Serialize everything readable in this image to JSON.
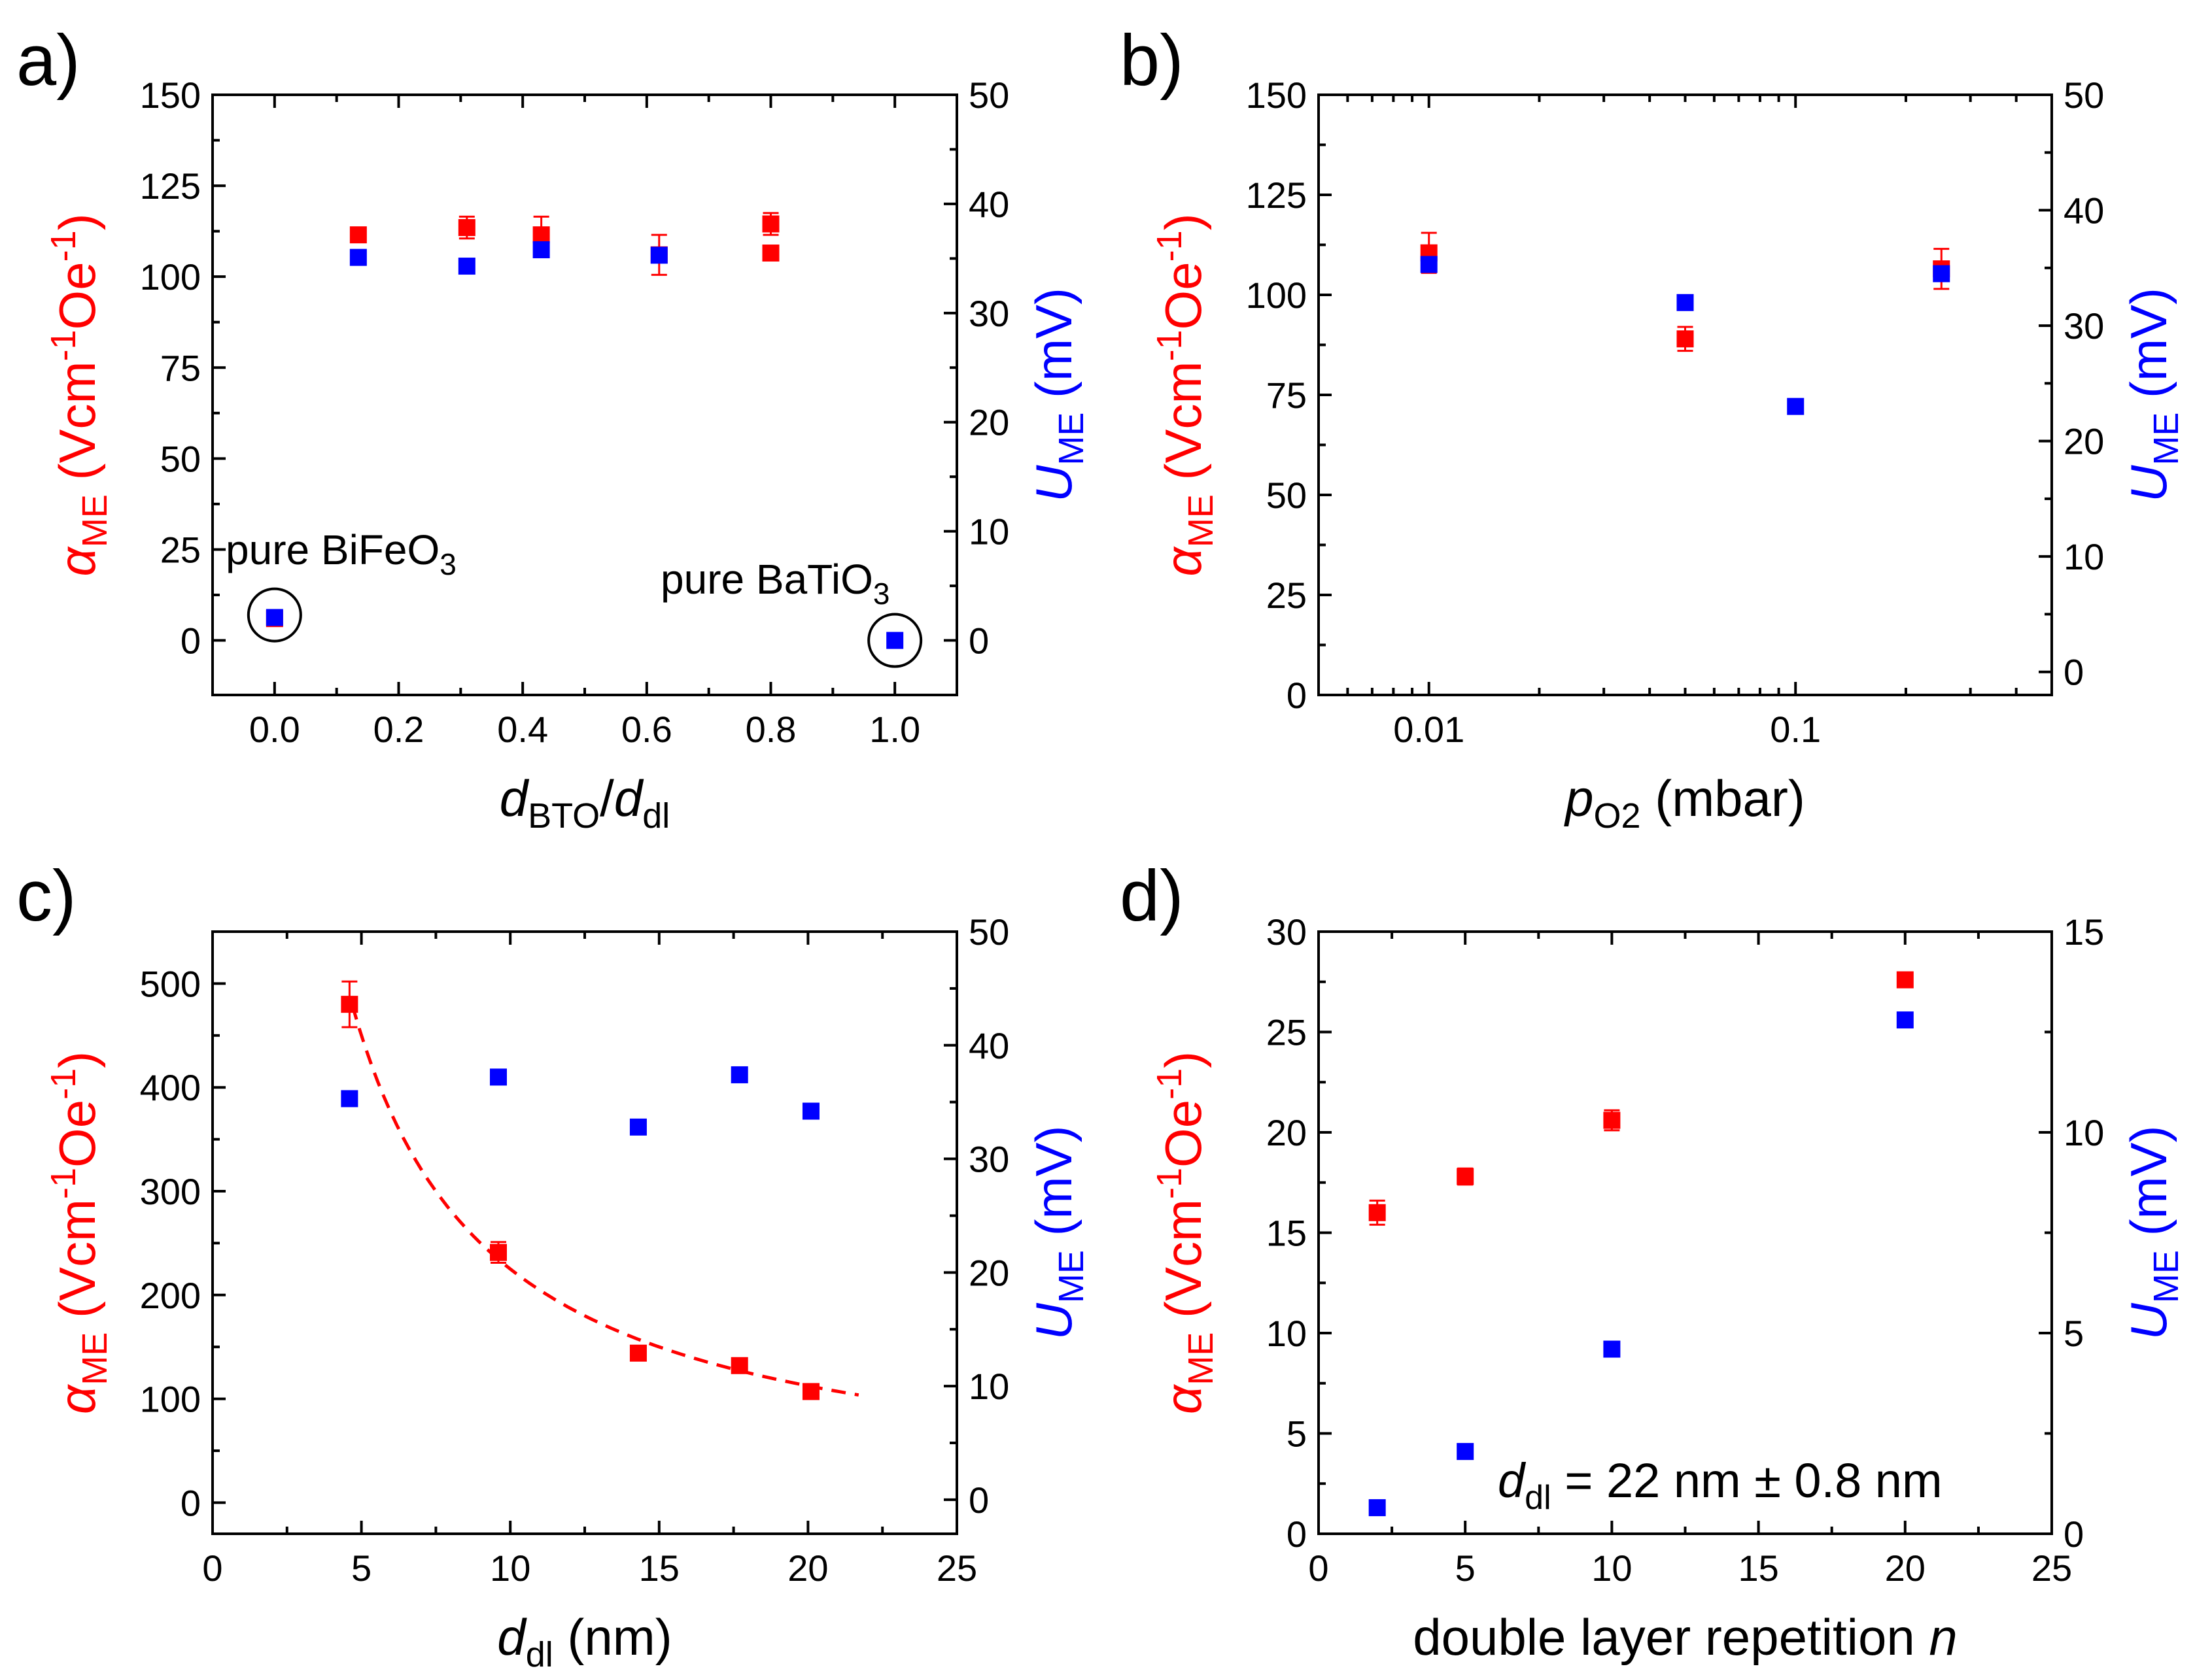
{
  "colors": {
    "red": "#ff0000",
    "blue": "#0000ff",
    "axis": "#000000"
  },
  "chart_data": [
    {
      "id": "a",
      "type": "scatter",
      "panel_label": "a)",
      "xscale": "linear",
      "xlim": [
        -0.1,
        1.1
      ],
      "xticks": [
        0.0,
        0.2,
        0.4,
        0.6,
        0.8,
        1.0
      ],
      "xtick_labels": [
        "0.0",
        "0.2",
        "0.4",
        "0.6",
        "0.8",
        "1.0"
      ],
      "ylim_left": [
        -15,
        150
      ],
      "yticks_left": [
        0,
        25,
        50,
        75,
        100,
        125,
        150
      ],
      "ylim_right": [
        -5,
        50
      ],
      "yticks_right": [
        0,
        10,
        20,
        30,
        40,
        50
      ],
      "xlabel": {
        "main": "d",
        "sub1": "BTO",
        "mid": "/d",
        "sub2": "dl"
      },
      "ylabel_left": {
        "sym": "α",
        "sub": "ME",
        "text": " (Vcm",
        "sup1": "-1",
        "mid": "Oe",
        "sup2": "-1",
        "end": ")"
      },
      "ylabel_right": {
        "sym": "U",
        "sub": "ME",
        "text": " (mV)"
      },
      "series": [
        {
          "name": "alpha_ME",
          "axis": "left",
          "color": "#ff0000",
          "x": [
            0.0,
            0.135,
            0.31,
            0.43,
            0.62,
            0.8
          ],
          "y": [
            6,
            111.5,
            113.5,
            111.5,
            106,
            114.5
          ],
          "yerr": [
            1,
            2,
            3,
            5,
            5.5,
            3
          ]
        },
        {
          "name": "U_ME",
          "axis": "right",
          "color": "#0000ff",
          "x": [
            0.0,
            0.135,
            0.31,
            0.43,
            0.62,
            1.0
          ],
          "y": [
            2.1,
            35.1,
            34.3,
            35.8,
            35.3,
            0
          ],
          "yerr": []
        }
      ],
      "extra_red": {
        "x": [
          0.8
        ],
        "y": [
          106.5
        ],
        "axis": "right_equiv"
      },
      "annotations": [
        {
          "text": "pure BiFeO",
          "sub": "3"
        },
        {
          "text": "pure BaTiO",
          "sub": "3"
        }
      ]
    },
    {
      "id": "b",
      "type": "scatter",
      "panel_label": "b)",
      "xscale": "log",
      "xlim": [
        0.005,
        0.5
      ],
      "xticks": [
        0.01,
        0.1
      ],
      "xtick_labels": [
        "0.01",
        "0.1"
      ],
      "ylim_left": [
        0,
        150
      ],
      "yticks_left": [
        0,
        25,
        50,
        75,
        100,
        125,
        150
      ],
      "ylim_right": [
        -2,
        50
      ],
      "yticks_right": [
        0,
        10,
        20,
        30,
        40,
        50
      ],
      "xlabel": {
        "main": "p",
        "sub1": "O2",
        "end": " (mbar)"
      },
      "ylabel_left": {
        "sym": "α",
        "sub": "ME",
        "text": " (Vcm",
        "sup1": "-1",
        "mid": "Oe",
        "sup2": "-1",
        "end": ")"
      },
      "ylabel_right": {
        "sym": "U",
        "sub": "ME",
        "text": " (mV)"
      },
      "series": [
        {
          "name": "alpha_ME",
          "axis": "left",
          "color": "#ff0000",
          "x": [
            0.01,
            0.05,
            0.25
          ],
          "y": [
            110.5,
            89,
            106.5
          ],
          "yerr": [
            5,
            3,
            5
          ]
        },
        {
          "name": "U_ME",
          "axis": "right",
          "color": "#0000ff",
          "x": [
            0.01,
            0.05,
            0.1,
            0.25
          ],
          "y": [
            35.3,
            32,
            23,
            34.5
          ],
          "yerr": []
        }
      ]
    },
    {
      "id": "c",
      "type": "scatter",
      "panel_label": "c)",
      "xscale": "linear",
      "xlim": [
        0,
        25
      ],
      "xticks": [
        0,
        5,
        10,
        15,
        20,
        25
      ],
      "xtick_labels": [
        "0",
        "5",
        "10",
        "15",
        "20",
        "25"
      ],
      "ylim_left": [
        -30,
        550
      ],
      "yticks_left": [
        0,
        100,
        200,
        300,
        400,
        500
      ],
      "ylim_right": [
        -3,
        50
      ],
      "yticks_right": [
        0,
        10,
        20,
        30,
        40,
        50
      ],
      "xlabel": {
        "main": "d",
        "sub1": "dl",
        "end": " (nm)"
      },
      "ylabel_left": {
        "sym": "α",
        "sub": "ME",
        "text": " (Vcm",
        "sup1": "-1",
        "mid": "Oe",
        "sup2": "-1",
        "end": ")"
      },
      "ylabel_right": {
        "sym": "U",
        "sub": "ME",
        "text": " (mV)"
      },
      "series": [
        {
          "name": "alpha_ME",
          "axis": "left",
          "color": "#ff0000",
          "x": [
            4.6,
            9.6,
            14.3,
            17.7,
            20.1
          ],
          "y": [
            480,
            241,
            144,
            132,
            107
          ],
          "yerr": [
            22,
            10,
            0,
            0,
            0
          ]
        },
        {
          "name": "U_ME",
          "axis": "right",
          "color": "#0000ff",
          "x": [
            4.6,
            9.6,
            14.3,
            17.7,
            20.1
          ],
          "y": [
            35.3,
            37.2,
            32.8,
            37.4,
            34.2
          ],
          "yerr": []
        }
      ],
      "fit": {
        "axis": "left",
        "color": "#ff0000",
        "style": "dashed",
        "form": "a/x",
        "a": 2250,
        "xrange": [
          4.7,
          21.7
        ]
      }
    },
    {
      "id": "d",
      "type": "scatter",
      "panel_label": "d)",
      "xscale": "linear",
      "xlim": [
        0,
        25
      ],
      "xticks": [
        0,
        5,
        10,
        15,
        20,
        25
      ],
      "xtick_labels": [
        "0",
        "5",
        "10",
        "15",
        "20",
        "25"
      ],
      "ylim_left": [
        0,
        30
      ],
      "yticks_left": [
        0,
        5,
        10,
        15,
        20,
        25,
        30
      ],
      "ylim_right": [
        0,
        15
      ],
      "yticks_right": [
        0,
        5,
        10,
        15
      ],
      "xlabel": {
        "main": "double layer repetition ",
        "ital": "n"
      },
      "ylabel_left": {
        "sym": "α",
        "sub": "ME",
        "text": " (Vcm",
        "sup1": "-1",
        "mid": "Oe",
        "sup2": "-1",
        "end": ")"
      },
      "ylabel_right": {
        "sym": "U",
        "sub": "ME",
        "text": " (mV)"
      },
      "series": [
        {
          "name": "alpha_ME",
          "axis": "left",
          "color": "#ff0000",
          "x": [
            2,
            5,
            10,
            20
          ],
          "y": [
            16,
            17.8,
            20.6,
            27.6
          ],
          "yerr": [
            0.6,
            0.4,
            0.5,
            0
          ]
        },
        {
          "name": "U_ME",
          "axis": "right",
          "color": "#0000ff",
          "x": [
            2,
            5,
            10,
            20
          ],
          "y": [
            0.65,
            2.05,
            4.6,
            12.8
          ],
          "yerr": []
        }
      ],
      "annotations": [
        {
          "text": "d",
          "sub": "dl",
          "rest": " = 22 nm ± 0.8 nm"
        }
      ]
    }
  ]
}
